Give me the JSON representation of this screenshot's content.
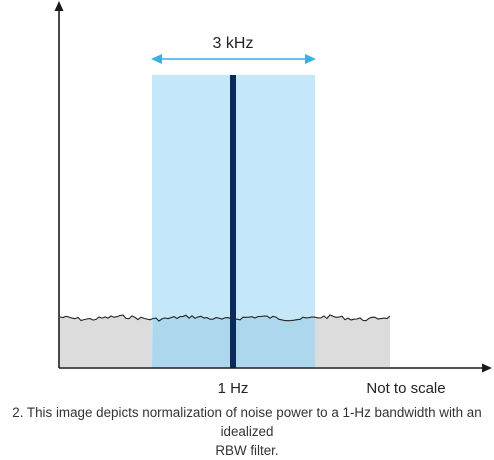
{
  "diagram": {
    "bandwidth_label": "3 kHz",
    "center_label": "1 Hz",
    "scale_note": "Not to scale"
  },
  "caption": {
    "line1": "2. This image depicts normalization of noise power to a 1-Hz bandwidth with an idealized",
    "line2": "RBW filter."
  },
  "colors": {
    "axis": "#1a1a1a",
    "filter_band": "#bfe6f8",
    "noise_floor": "#dcdcdc",
    "center_line": "#0b2a5c",
    "bandwidth_arrow": "#3ab1e0"
  }
}
